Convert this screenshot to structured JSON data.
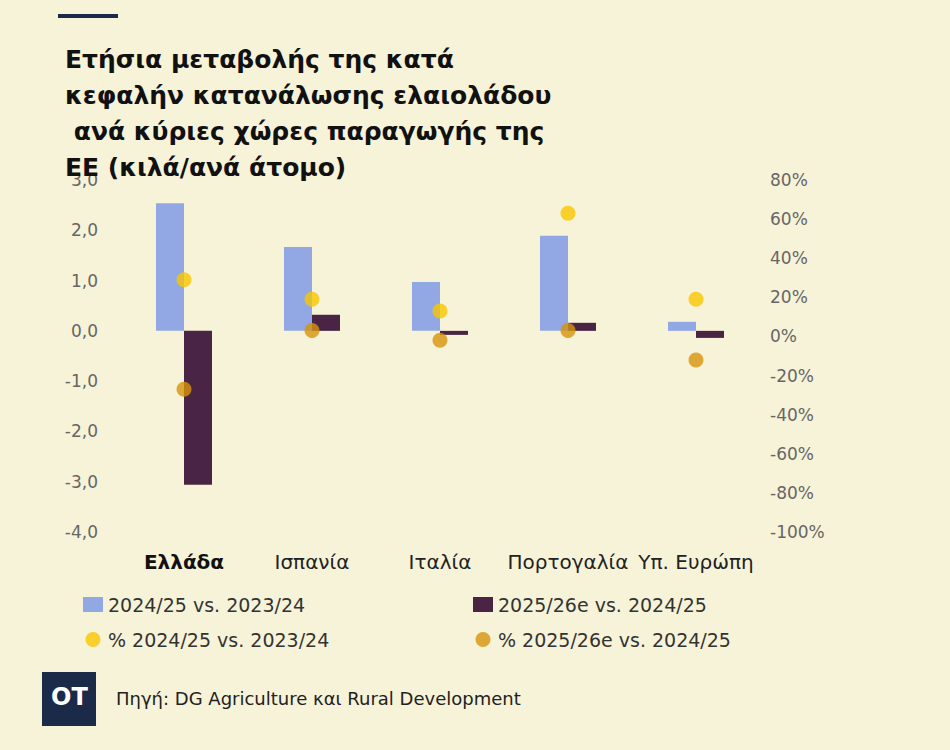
{
  "chart_data": {
    "type": "bar",
    "title": "Ετήσια μεταβολής της κατά κεφαλήν κατανάλωσης ελαιολάδου ανά κύριες χώρες παραγωγής της ΕΕ (κιλά/ανά άτομο)",
    "categories": [
      "Ελλάδα",
      "Ισπανία",
      "Ιταλία",
      "Πορτογαλία",
      "Υπ. Ευρώπη"
    ],
    "series": [
      {
        "name": "2024/25 vs. 2023/24",
        "type": "bar",
        "color": "#91a8e4",
        "values": [
          2.54,
          1.67,
          0.97,
          1.89,
          0.18
        ]
      },
      {
        "name": "2025/26e vs. 2024/25",
        "type": "bar",
        "color": "#4a2445",
        "values": [
          -3.06,
          0.32,
          -0.08,
          0.16,
          -0.14
        ]
      },
      {
        "name": "% 2024/25 vs. 2023/24",
        "type": "scatter",
        "marker": "circle",
        "axis": "y2",
        "color": "#f7c600",
        "values": [
          29,
          19,
          13,
          63,
          19
        ]
      },
      {
        "name": "% 2025/26e vs. 2024/25",
        "type": "scatter",
        "marker": "circle",
        "axis": "y2",
        "color": "#d6940c",
        "values": [
          -27,
          3,
          -2,
          3,
          -12
        ]
      }
    ],
    "ylim": [
      -4,
      3
    ],
    "yticks": [
      {
        "value": -4,
        "label": "-4,0"
      },
      {
        "value": -3,
        "label": "-3,0"
      },
      {
        "value": -2,
        "label": "-2,0"
      },
      {
        "value": -1,
        "label": "-1,0"
      },
      {
        "value": 0,
        "label": "0,0"
      },
      {
        "value": 1,
        "label": "1,0"
      },
      {
        "value": 2,
        "label": "2,0"
      },
      {
        "value": 3,
        "label": "3,0"
      }
    ],
    "y2lim": [
      -100,
      80
    ],
    "y2ticks": [
      {
        "value": -100,
        "label": "-100%"
      },
      {
        "value": -80,
        "label": "-80%"
      },
      {
        "value": -60,
        "label": "-60%"
      },
      {
        "value": -40,
        "label": "-40%"
      },
      {
        "value": -20,
        "label": "-20%"
      },
      {
        "value": 0,
        "label": "0%"
      },
      {
        "value": 20,
        "label": "20%"
      },
      {
        "value": 40,
        "label": "40%"
      },
      {
        "value": 60,
        "label": "60%"
      },
      {
        "value": 80,
        "label": "80%"
      }
    ],
    "grid": false,
    "legend": "bottom",
    "source": "Πηγή: DG Agriculture και Rural Development",
    "logo": "OT"
  }
}
